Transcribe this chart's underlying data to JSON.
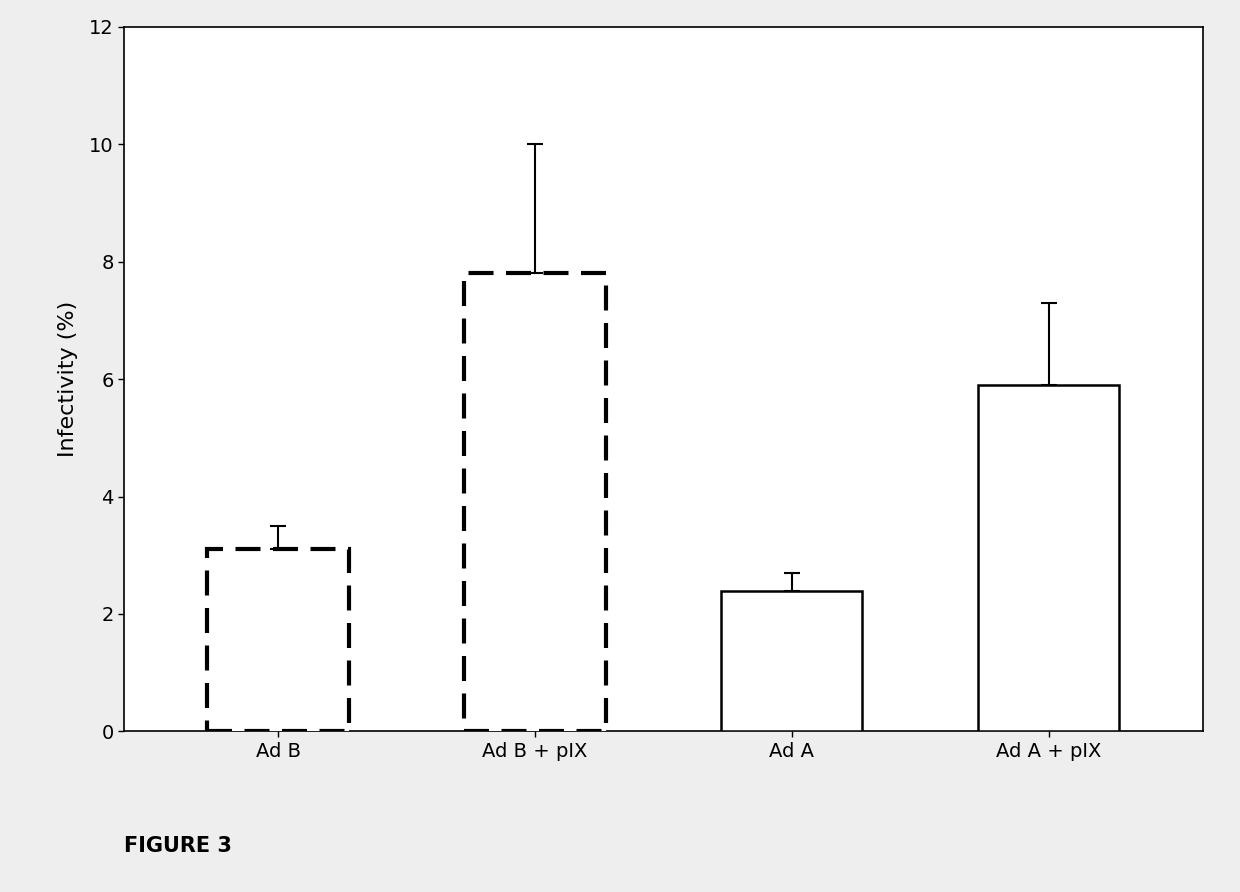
{
  "categories": [
    "Ad B",
    "Ad B + pIX",
    "Ad A",
    "Ad A + pIX"
  ],
  "values": [
    3.1,
    7.8,
    2.4,
    5.9
  ],
  "errors": [
    0.4,
    2.2,
    0.3,
    1.4
  ],
  "bar_styles": [
    "dashed",
    "dashed",
    "solid",
    "solid"
  ],
  "bar_facecolor": "#ffffff",
  "bar_edgecolor": "#000000",
  "dashed_linewidth": 3.0,
  "solid_linewidth": 1.8,
  "ylabel": "Infectivity (%)",
  "ylim": [
    0,
    12
  ],
  "yticks": [
    0,
    2,
    4,
    6,
    8,
    10,
    12
  ],
  "figure_label": "FIGURE 3",
  "background_color": "#eeeeee",
  "plot_background": "#ffffff",
  "bar_width": 0.55,
  "figsize": [
    12.4,
    8.92
  ],
  "dpi": 100,
  "spine_linewidth": 1.2,
  "tick_fontsize": 14,
  "ylabel_fontsize": 16,
  "figure_label_fontsize": 15
}
